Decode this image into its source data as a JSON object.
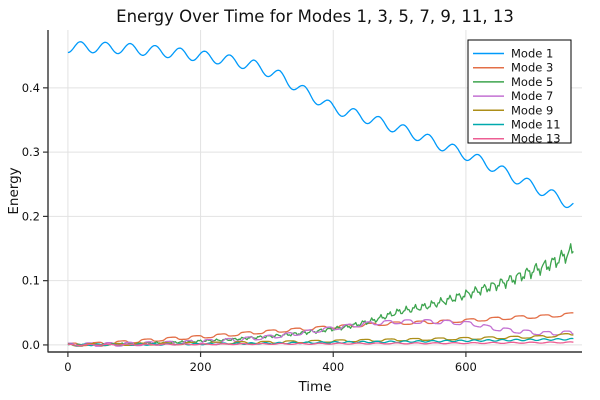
{
  "chart_data": {
    "type": "line",
    "title": "Energy Over Time for Modes 1, 3, 5, 7, 9, 11, 13",
    "xlabel": "Time",
    "ylabel": "Energy",
    "xlim": [
      -30,
      775
    ],
    "ylim": [
      -0.011,
      0.49
    ],
    "grid": true,
    "legend_position": "top-right",
    "xticks": {
      "values": [
        0,
        200,
        400,
        600
      ],
      "labels": [
        "0",
        "200",
        "400",
        "600"
      ]
    },
    "yticks": {
      "values": [
        0.0,
        0.1,
        0.2,
        0.3,
        0.4
      ],
      "labels": [
        "0.0",
        "0.1",
        "0.2",
        "0.3",
        "0.4"
      ]
    },
    "colors": {
      "grid": "#e2e2e2",
      "spine": "#333333",
      "tick_text": "#1a1a1a",
      "legend_border": "#000000",
      "legend_bg": "#ffffff"
    },
    "tmax": 762,
    "series": [
      {
        "name": "Mode 1",
        "color": "#009AFA",
        "keypoints": [
          [
            0,
            0.4635
          ],
          [
            40,
            0.463
          ],
          [
            80,
            0.4615
          ],
          [
            120,
            0.4585
          ],
          [
            160,
            0.4545
          ],
          [
            200,
            0.4495
          ],
          [
            240,
            0.4435
          ],
          [
            280,
            0.435
          ],
          [
            320,
            0.418
          ],
          [
            360,
            0.392
          ],
          [
            400,
            0.368
          ],
          [
            440,
            0.3565
          ],
          [
            480,
            0.343
          ],
          [
            520,
            0.329
          ],
          [
            560,
            0.312
          ],
          [
            600,
            0.296
          ],
          [
            640,
            0.278
          ],
          [
            680,
            0.257
          ],
          [
            720,
            0.238
          ],
          [
            762,
            0.217
          ]
        ],
        "osc": {
          "type": "sine",
          "amp": 0.0085,
          "amp_scale": 0,
          "period": 37.5,
          "phase": -1.6
        }
      },
      {
        "name": "Mode 3",
        "color": "#E36F47",
        "keypoints": [
          [
            0,
            0.0005
          ],
          [
            40,
            0.0015
          ],
          [
            80,
            0.004
          ],
          [
            120,
            0.007
          ],
          [
            160,
            0.01
          ],
          [
            200,
            0.0125
          ],
          [
            240,
            0.0155
          ],
          [
            280,
            0.019
          ],
          [
            320,
            0.022
          ],
          [
            360,
            0.025
          ],
          [
            400,
            0.028
          ],
          [
            440,
            0.0305
          ],
          [
            480,
            0.033
          ],
          [
            520,
            0.0345
          ],
          [
            560,
            0.036
          ],
          [
            600,
            0.038
          ],
          [
            640,
            0.0405
          ],
          [
            680,
            0.043
          ],
          [
            720,
            0.0445
          ],
          [
            762,
            0.048
          ]
        ],
        "osc": {
          "type": "square",
          "amp": 0.0022,
          "amp_scale": 0,
          "period": 37.5,
          "phase": 0.6
        }
      },
      {
        "name": "Mode 5",
        "color": "#3DA44E",
        "keypoints": [
          [
            0,
            0.0
          ],
          [
            80,
            0.0015
          ],
          [
            160,
            0.004
          ],
          [
            240,
            0.008
          ],
          [
            300,
            0.013
          ],
          [
            340,
            0.017
          ],
          [
            380,
            0.022
          ],
          [
            420,
            0.028
          ],
          [
            460,
            0.038
          ],
          [
            500,
            0.052
          ],
          [
            540,
            0.06
          ],
          [
            580,
            0.072
          ],
          [
            620,
            0.085
          ],
          [
            660,
            0.098
          ],
          [
            700,
            0.115
          ],
          [
            730,
            0.127
          ],
          [
            762,
            0.147
          ]
        ],
        "osc": {
          "type": "jagged",
          "amp": 0.0012,
          "amp_scale": 0.07,
          "period": 13,
          "phase": 0
        }
      },
      {
        "name": "Mode 7",
        "color": "#C371D2",
        "keypoints": [
          [
            0,
            0.0
          ],
          [
            80,
            0.001
          ],
          [
            160,
            0.003
          ],
          [
            240,
            0.007
          ],
          [
            300,
            0.012
          ],
          [
            340,
            0.017
          ],
          [
            380,
            0.023
          ],
          [
            420,
            0.029
          ],
          [
            460,
            0.034
          ],
          [
            500,
            0.036
          ],
          [
            540,
            0.0365
          ],
          [
            580,
            0.035
          ],
          [
            610,
            0.033
          ],
          [
            640,
            0.026
          ],
          [
            680,
            0.021
          ],
          [
            720,
            0.018
          ],
          [
            762,
            0.019
          ]
        ],
        "osc": {
          "type": "square",
          "amp": 0.0028,
          "amp_scale": 0,
          "period": 30,
          "phase": 1.2
        }
      },
      {
        "name": "Mode 9",
        "color": "#AC8E18",
        "keypoints": [
          [
            0,
            0.0
          ],
          [
            100,
            0.001
          ],
          [
            200,
            0.0025
          ],
          [
            300,
            0.004
          ],
          [
            400,
            0.006
          ],
          [
            500,
            0.008
          ],
          [
            600,
            0.01
          ],
          [
            680,
            0.012
          ],
          [
            720,
            0.013
          ],
          [
            762,
            0.017
          ]
        ],
        "osc": {
          "type": "square",
          "amp": 0.0016,
          "amp_scale": 0,
          "period": 37.5,
          "phase": 2.0
        }
      },
      {
        "name": "Mode 11",
        "color": "#00A9AD",
        "keypoints": [
          [
            0,
            0.0
          ],
          [
            100,
            0.0005
          ],
          [
            200,
            0.0015
          ],
          [
            300,
            0.0025
          ],
          [
            400,
            0.004
          ],
          [
            500,
            0.005
          ],
          [
            600,
            0.0065
          ],
          [
            700,
            0.008
          ],
          [
            762,
            0.009
          ]
        ],
        "osc": {
          "type": "sine",
          "amp": 0.0012,
          "amp_scale": 0,
          "period": 21,
          "phase": 0.5
        }
      },
      {
        "name": "Mode 13",
        "color": "#ED5E93",
        "keypoints": [
          [
            0,
            0.0
          ],
          [
            200,
            0.001
          ],
          [
            400,
            0.002
          ],
          [
            600,
            0.0028
          ],
          [
            762,
            0.004
          ]
        ],
        "osc": {
          "type": "sine",
          "amp": 0.0008,
          "amp_scale": 0,
          "period": 29,
          "phase": 1.0
        }
      }
    ]
  }
}
